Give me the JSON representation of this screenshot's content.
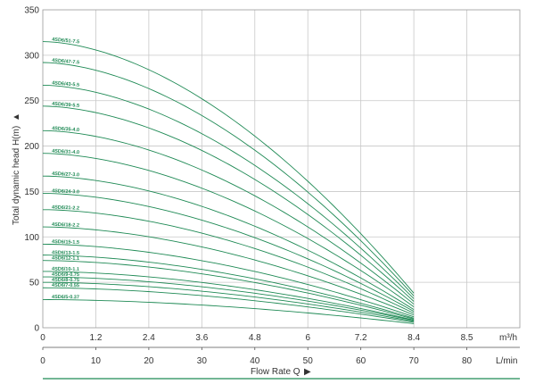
{
  "chart_data": {
    "type": "line",
    "title": "",
    "ylabel": "Total dynamic head H(m)",
    "ylabel_arrow": "▲",
    "ylim": [
      0,
      350
    ],
    "yticks": [
      "0",
      "50",
      "100",
      "150",
      "200",
      "250",
      "300",
      "350"
    ],
    "xlabel": "Flow Rate Q",
    "xlabel_arrow": "▶",
    "x_primary": {
      "unit": "m³/h",
      "ticks": [
        "0",
        "1.2",
        "2.4",
        "3.6",
        "4.8",
        "6",
        "7.2",
        "8.4",
        "8.5"
      ],
      "range": [
        0,
        8.4
      ]
    },
    "x_secondary": {
      "unit": "L/min",
      "ticks": [
        "0",
        "10",
        "20",
        "30",
        "40",
        "50",
        "60",
        "70",
        "80"
      ]
    },
    "grid": true,
    "series": [
      {
        "name": "4SD6/51-7.5",
        "shutoff_head": 315,
        "end_head": 38
      },
      {
        "name": "4SD6/47-7.5",
        "shutoff_head": 292,
        "end_head": 35
      },
      {
        "name": "4SD6/43-5.5",
        "shutoff_head": 267,
        "end_head": 32
      },
      {
        "name": "4SD6/39-5.5",
        "shutoff_head": 244,
        "end_head": 29
      },
      {
        "name": "4SD6/35-4.0",
        "shutoff_head": 217,
        "end_head": 26
      },
      {
        "name": "4SD6/31-4.0",
        "shutoff_head": 192,
        "end_head": 23
      },
      {
        "name": "4SD6/27-3.0",
        "shutoff_head": 167,
        "end_head": 20
      },
      {
        "name": "4SD6/24-3.0",
        "shutoff_head": 148,
        "end_head": 18
      },
      {
        "name": "4SD6/21-2.2",
        "shutoff_head": 130,
        "end_head": 16
      },
      {
        "name": "4SD6/18-2.2",
        "shutoff_head": 111,
        "end_head": 14
      },
      {
        "name": "4SD6/15-1.5",
        "shutoff_head": 92,
        "end_head": 12
      },
      {
        "name": "4SD6/13-1.5",
        "shutoff_head": 80,
        "end_head": 10.5
      },
      {
        "name": "4SD6/12-1.1",
        "shutoff_head": 74,
        "end_head": 9.5
      },
      {
        "name": "4SD6/10-1.1",
        "shutoff_head": 62,
        "end_head": 8.5
      },
      {
        "name": "4SD6/9-0.75",
        "shutoff_head": 56,
        "end_head": 8
      },
      {
        "name": "4SD6/8-0.75",
        "shutoff_head": 50,
        "end_head": 7
      },
      {
        "name": "4SD6/7-0.55",
        "shutoff_head": 44,
        "end_head": 6
      },
      {
        "name": "4SD6/5-0.37",
        "shutoff_head": 31,
        "end_head": 4.5
      }
    ]
  }
}
